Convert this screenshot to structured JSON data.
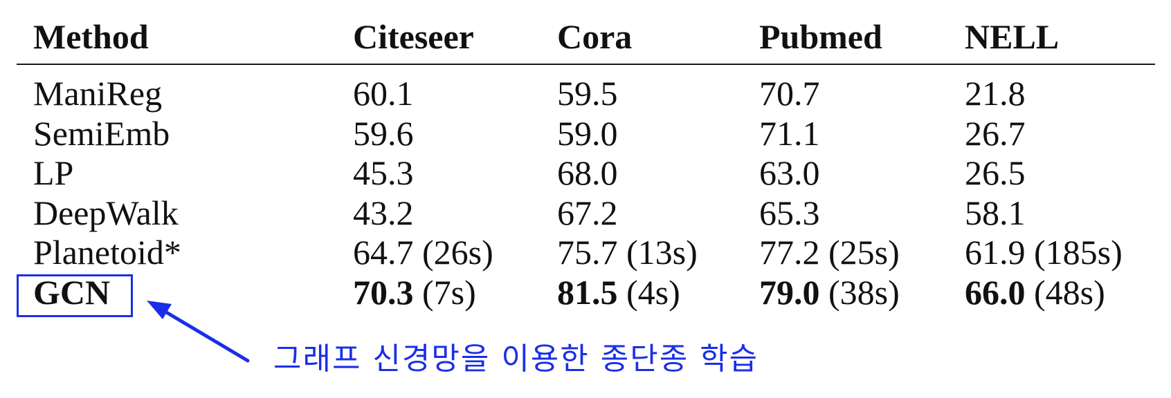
{
  "table": {
    "headers": [
      "Method",
      "Citeseer",
      "Cora",
      "Pubmed",
      "NELL"
    ],
    "rows": [
      {
        "method": "ManiReg",
        "citeseer": {
          "score": "60.1",
          "time": ""
        },
        "cora": {
          "score": "59.5",
          "time": ""
        },
        "pubmed": {
          "score": "70.7",
          "time": ""
        },
        "nell": {
          "score": "21.8",
          "time": ""
        }
      },
      {
        "method": "SemiEmb",
        "citeseer": {
          "score": "59.6",
          "time": ""
        },
        "cora": {
          "score": "59.0",
          "time": ""
        },
        "pubmed": {
          "score": "71.1",
          "time": ""
        },
        "nell": {
          "score": "26.7",
          "time": ""
        }
      },
      {
        "method": "LP",
        "citeseer": {
          "score": "45.3",
          "time": ""
        },
        "cora": {
          "score": "68.0",
          "time": ""
        },
        "pubmed": {
          "score": "63.0",
          "time": ""
        },
        "nell": {
          "score": "26.5",
          "time": ""
        }
      },
      {
        "method": "DeepWalk",
        "citeseer": {
          "score": "43.2",
          "time": ""
        },
        "cora": {
          "score": "67.2",
          "time": ""
        },
        "pubmed": {
          "score": "65.3",
          "time": ""
        },
        "nell": {
          "score": "58.1",
          "time": ""
        }
      },
      {
        "method": "Planetoid*",
        "citeseer": {
          "score": "64.7",
          "time": "(26s)"
        },
        "cora": {
          "score": "75.7",
          "time": "(13s)"
        },
        "pubmed": {
          "score": "77.2",
          "time": "(25s)"
        },
        "nell": {
          "score": "61.9",
          "time": "(185s)"
        }
      },
      {
        "method": "GCN",
        "citeseer": {
          "score": "70.3",
          "time": "(7s)"
        },
        "cora": {
          "score": "81.5",
          "time": "(4s)"
        },
        "pubmed": {
          "score": "79.0",
          "time": "(38s)"
        },
        "nell": {
          "score": "66.0",
          "time": "(48s)"
        }
      }
    ]
  },
  "annotation": {
    "text": "그래프 신경망을 이용한 종단종 학습",
    "color": "#1a2ee8"
  }
}
